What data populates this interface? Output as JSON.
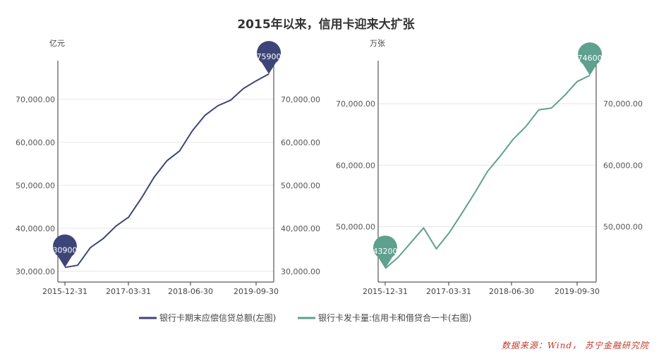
{
  "title": "2015年以来，信用卡迎来大扩张",
  "source_note": "数据来源：Wind， 苏宁金融研究院",
  "chart_data": [
    {
      "type": "line",
      "title": "",
      "ylabel": "亿元",
      "ylim": [
        27500,
        79000
      ],
      "y_ticks": [
        30000,
        40000,
        50000,
        60000,
        70000
      ],
      "y_tick_labels": [
        "30,000.00",
        "40,000.00",
        "50,000.00",
        "60,000.00",
        "70,000.00"
      ],
      "x_tick_labels": [
        "2015-12-31",
        "2017-03-31",
        "2018-06-30",
        "2019-09-30"
      ],
      "x": [
        "2015-12-31",
        "2016-03-31",
        "2016-06-30",
        "2016-09-30",
        "2016-12-31",
        "2017-03-31",
        "2017-06-30",
        "2017-09-30",
        "2017-12-31",
        "2018-03-31",
        "2018-06-30",
        "2018-09-30",
        "2018-12-31",
        "2019-03-31",
        "2019-06-30",
        "2019-09-30",
        "2019-12-31"
      ],
      "series": [
        {
          "name": "银行卡期末应偿信贷总额(左图)",
          "color": "#3d4578",
          "values": [
            30900,
            31400,
            35500,
            37600,
            40500,
            42600,
            47000,
            51900,
            55700,
            58000,
            62700,
            66300,
            68500,
            69800,
            72500,
            74300,
            75900
          ]
        }
      ],
      "markers": [
        {
          "index": 0,
          "label": "30900",
          "color": "#3d4578"
        },
        {
          "index": 16,
          "label": "75900",
          "color": "#3d4578"
        }
      ]
    },
    {
      "type": "line",
      "title": "",
      "ylabel": "万张",
      "ylim": [
        41000,
        77000
      ],
      "y_ticks": [
        50000,
        60000,
        70000
      ],
      "y_tick_labels": [
        "50,000.00",
        "60,000.00",
        "70,000.00"
      ],
      "x_tick_labels": [
        "2015-12-31",
        "2017-03-31",
        "2018-06-30",
        "2019-09-30"
      ],
      "x": [
        "2015-12-31",
        "2016-03-31",
        "2016-06-30",
        "2016-09-30",
        "2016-12-31",
        "2017-03-31",
        "2017-06-30",
        "2017-09-30",
        "2017-12-31",
        "2018-03-31",
        "2018-06-30",
        "2018-09-30",
        "2018-12-31",
        "2019-03-31",
        "2019-06-30",
        "2019-09-30",
        "2019-12-31"
      ],
      "series": [
        {
          "name": "银行卡发卡量:信用卡和借贷合一卡(右图)",
          "color": "#5fa08f",
          "values": [
            43200,
            45000,
            47400,
            49800,
            46400,
            49000,
            52200,
            55500,
            59000,
            61500,
            64200,
            66300,
            69000,
            69300,
            71300,
            73600,
            74600
          ]
        }
      ],
      "markers": [
        {
          "index": 0,
          "label": "43200",
          "color": "#5fa08f"
        },
        {
          "index": 16,
          "label": "74600",
          "color": "#5fa08f"
        }
      ]
    }
  ]
}
